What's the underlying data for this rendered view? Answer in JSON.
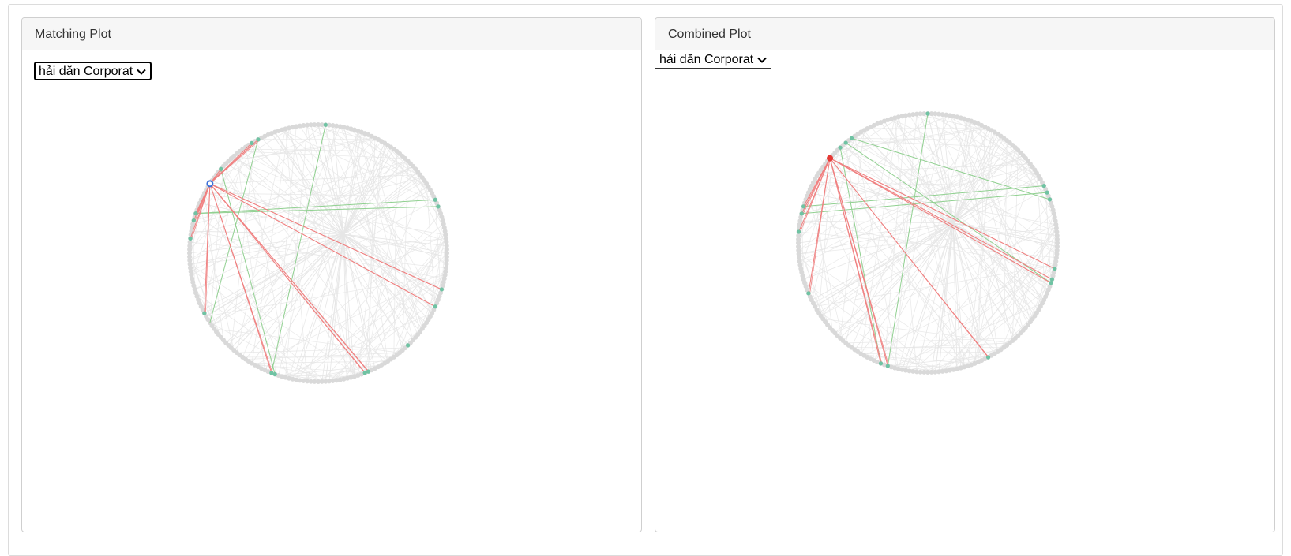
{
  "panels": {
    "left": {
      "title": "Matching Plot",
      "select_value": "hải dăn Corporat"
    },
    "right": {
      "title": "Combined Plot",
      "select_value": "hải dăn Corporat"
    }
  },
  "colors": {
    "node": "#d9d9d9",
    "linked_node": "#6fc3a3",
    "background_edge": "#e6e6e6",
    "match_edge_red": "#f08080",
    "match_edge_green": "#90d090",
    "selected_node_left": "#3b6fd8",
    "selected_node_right": "#e53935"
  },
  "icons": {
    "select_arrow": "chevron-down-icon"
  }
}
